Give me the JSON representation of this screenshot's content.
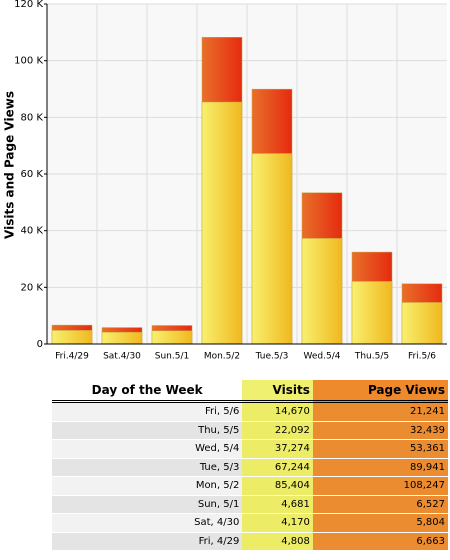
{
  "chart_data": {
    "type": "bar",
    "y_label": "Visits and Page Views",
    "categories": [
      "Fri.4/29",
      "Sat.4/30",
      "Sun.5/1",
      "Mon.5/2",
      "Tue.5/3",
      "Wed.5/4",
      "Thu.5/5",
      "Fri.5/6"
    ],
    "series": [
      {
        "name": "Page Views",
        "color": "#e52b10",
        "values": [
          6663,
          5804,
          6527,
          108247,
          89941,
          53361,
          32439,
          21241
        ]
      },
      {
        "name": "Visits",
        "color": "#f0b820",
        "values": [
          4808,
          4170,
          4681,
          85404,
          67244,
          37274,
          22092,
          14670
        ]
      }
    ],
    "ylim": [
      0,
      120000
    ],
    "yticks": [
      0,
      {
        "value": 20000,
        "label": "20 K"
      },
      {
        "value": 40000,
        "label": "40 K"
      },
      {
        "value": 60000,
        "label": "60 K"
      },
      {
        "value": 80000,
        "label": "80 K"
      },
      {
        "value": 100000,
        "label": "100 K"
      },
      {
        "value": 120000,
        "label": "120 K"
      }
    ],
    "grid": true
  },
  "table": {
    "header": [
      "Day of the Week",
      "Visits",
      "Page Views"
    ],
    "rows": [
      [
        "Fri, 5/6",
        "14,670",
        "21,241"
      ],
      [
        "Thu, 5/5",
        "22,092",
        "32,439"
      ],
      [
        "Wed, 5/4",
        "37,274",
        "53,361"
      ],
      [
        "Tue, 5/3",
        "67,244",
        "89,941"
      ],
      [
        "Mon, 5/2",
        "85,404",
        "108,247"
      ],
      [
        "Sun, 5/1",
        "4,681",
        "6,527"
      ],
      [
        "Sat, 4/30",
        "4,170",
        "5,804"
      ],
      [
        "Fri, 4/29",
        "4,808",
        "6,663"
      ]
    ]
  }
}
